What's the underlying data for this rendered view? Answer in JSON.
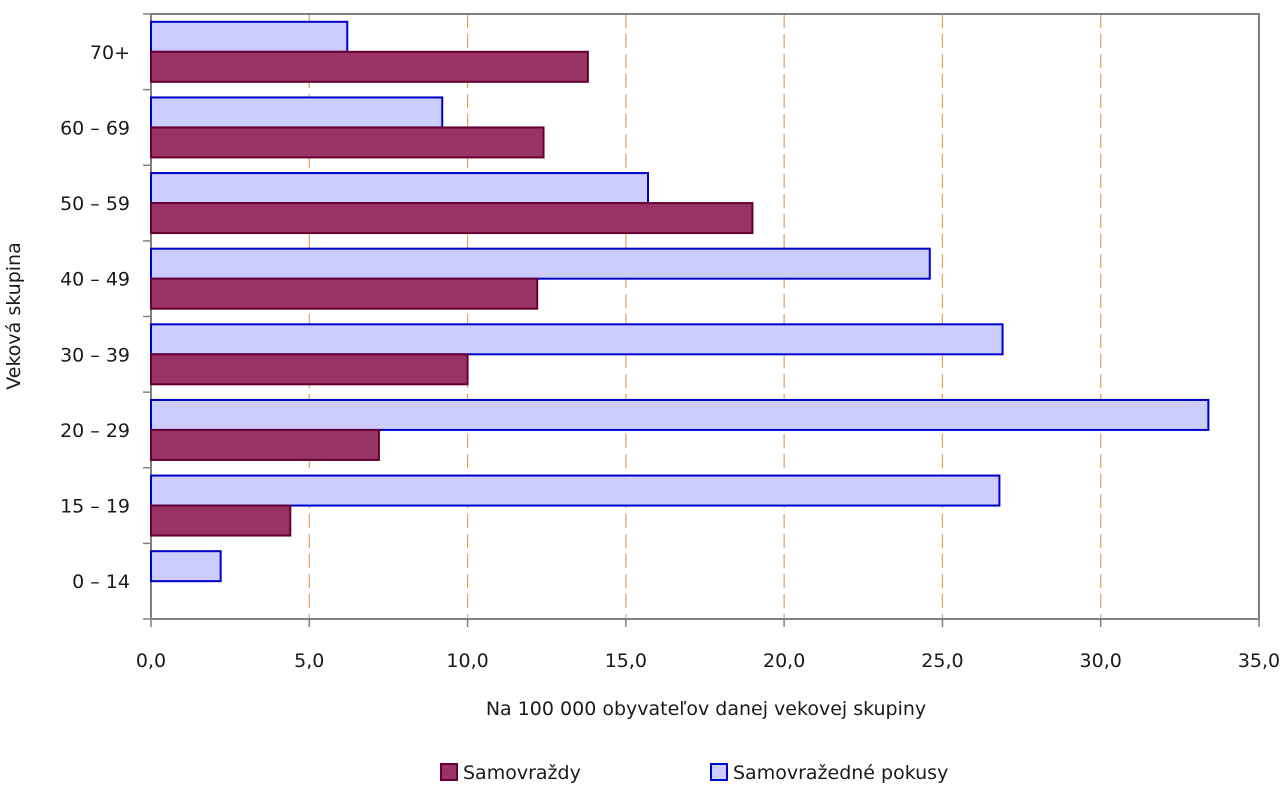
{
  "chart_data": {
    "type": "bar",
    "orientation": "horizontal",
    "title": "",
    "xlabel": "Na 100 000 obyvateľov danej vekovej skupiny",
    "ylabel": "Veková skupina",
    "xlim": [
      0,
      35
    ],
    "xticks": [
      "0,0",
      "5,0",
      "10,0",
      "15,0",
      "20,0",
      "25,0",
      "30,0",
      "35,0"
    ],
    "grid": "vertical dashed",
    "legend_position": "bottom",
    "categories": [
      "70+",
      "60 – 69",
      "50 – 59",
      "40 – 49",
      "30 – 39",
      "20 – 29",
      "15 – 19",
      "0 – 14"
    ],
    "series": [
      {
        "name": "Samovraždy",
        "color": "#993366",
        "stroke": "#660033",
        "values": [
          13.8,
          12.4,
          19.0,
          12.2,
          10.0,
          7.2,
          4.4,
          0
        ]
      },
      {
        "name": "Samovražedné pokusy",
        "color": "#ccccff",
        "stroke": "#0000cc",
        "values": [
          6.2,
          9.2,
          15.7,
          24.6,
          26.9,
          33.4,
          26.8,
          2.2
        ]
      }
    ],
    "gridline_color": "#e0a060"
  }
}
